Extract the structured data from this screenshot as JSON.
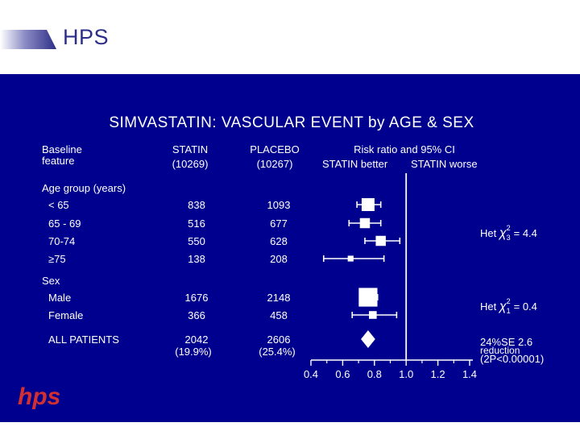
{
  "header": {
    "title": "HPS",
    "bar_color": "#2e2e88"
  },
  "colors": {
    "background": "#00008f",
    "ink": "#ffffff",
    "logo": "#d23030"
  },
  "logo_text": "hps",
  "chart_data": {
    "type": "forest",
    "title": "SIMVASTATIN: VASCULAR EVENT by AGE & SEX",
    "columns": {
      "feature": [
        "Baseline",
        "feature"
      ],
      "statin": [
        "STATIN",
        "(10269)"
      ],
      "placebo": [
        "PLACEBO",
        "(10267)"
      ],
      "risk": "Risk ratio and 95% CI",
      "better": "STATIN better",
      "worse": "STATIN worse"
    },
    "x_ticks": [
      0.4,
      0.6,
      0.8,
      1.0,
      1.2,
      1.4
    ],
    "x_tick_labels": [
      "0.4",
      "0.6",
      "0.8",
      "1.0",
      "1.2",
      "1.4"
    ],
    "xlim": [
      0.4,
      1.4
    ],
    "reference_line": 1.0,
    "rows": [
      {
        "kind": "header",
        "label": "Age group (years)"
      },
      {
        "kind": "data",
        "label": "< 65",
        "statin": "838",
        "placebo": "1093",
        "rr": 0.76,
        "ci": [
          0.69,
          0.84
        ],
        "size": 1.0
      },
      {
        "kind": "data",
        "label": "65 - 69",
        "statin": "516",
        "placebo": "677",
        "rr": 0.74,
        "ci": [
          0.64,
          0.84
        ],
        "size": 0.78
      },
      {
        "kind": "data",
        "label": "70-74",
        "statin": "550",
        "placebo": "628",
        "rr": 0.84,
        "ci": [
          0.74,
          0.96
        ],
        "size": 0.78
      },
      {
        "kind": "data",
        "label": "≥75",
        "statin": "138",
        "placebo": "208",
        "rr": 0.65,
        "ci": [
          0.48,
          0.86
        ],
        "size": 0.45
      },
      {
        "kind": "header",
        "label": "Sex"
      },
      {
        "kind": "data",
        "label": "Male",
        "statin": "1676",
        "placebo": "2148",
        "rr": 0.76,
        "ci": [
          0.71,
          0.82
        ],
        "size": 1.45
      },
      {
        "kind": "data",
        "label": "Female",
        "statin": "366",
        "placebo": "458",
        "rr": 0.79,
        "ci": [
          0.66,
          0.94
        ],
        "size": 0.6
      },
      {
        "kind": "total",
        "label": "ALL PATIENTS",
        "statin": "2042",
        "placebo": "2606",
        "statin_pct": "(19.9%)",
        "placebo_pct": "(25.4%)",
        "rr": 0.76,
        "ci": [
          0.72,
          0.81
        ]
      }
    ],
    "annotations": {
      "het_age": {
        "prefix": "Het ",
        "chi": "χ",
        "sup": "2",
        "sub": "3",
        "value": "= 4.4"
      },
      "het_sex": {
        "prefix": "Het ",
        "chi": "χ",
        "sup": "2",
        "sub": "1",
        "value": "= 0.4"
      },
      "reduction": {
        "line1": "24%SE 2.6",
        "line2": "reduction",
        "line3": "(2P<0.00001)"
      }
    }
  }
}
